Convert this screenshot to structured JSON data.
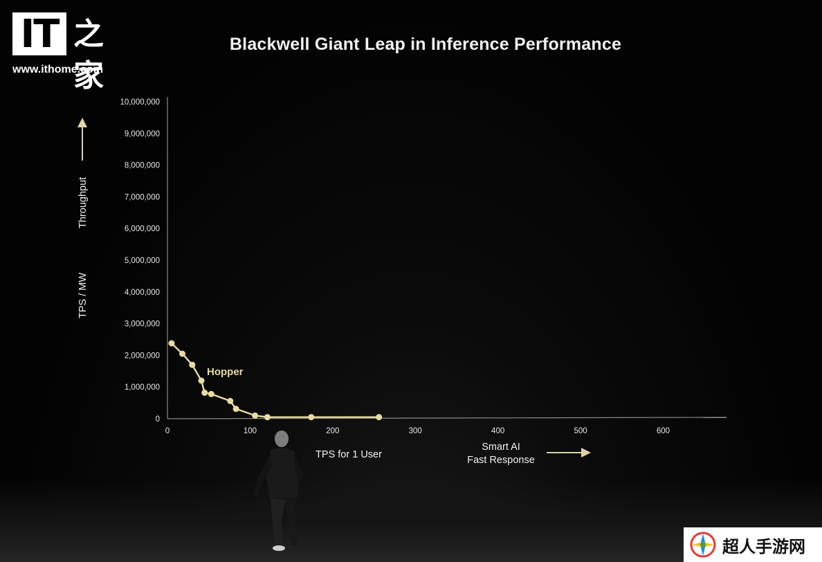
{
  "logo": {
    "mark": "IT",
    "chinese": "之家",
    "url": "www.ithome.com"
  },
  "watermark": {
    "text": "超人手游网",
    "icon": "compass-logo-icon"
  },
  "chart_data": {
    "type": "line",
    "title": "Blackwell Giant Leap in Inference Performance",
    "xlabel": "TPS for 1 User",
    "ylabel": "TPS / MW",
    "y_direction_label": "Throughput",
    "x_direction_label": [
      "Smart AI",
      "Fast Response"
    ],
    "xlim": [
      0,
      650
    ],
    "ylim": [
      0,
      10000000
    ],
    "x_ticks": [
      0,
      100,
      200,
      300,
      400,
      500,
      600
    ],
    "x_tick_labels": [
      "0",
      "100",
      "200",
      "300",
      "400",
      "500",
      "600"
    ],
    "y_ticks": [
      0,
      1000000,
      2000000,
      3000000,
      4000000,
      5000000,
      6000000,
      7000000,
      8000000,
      9000000,
      10000000
    ],
    "y_tick_labels": [
      "0",
      "1,000,000",
      "2,000,000",
      "3,000,000",
      "4,000,000",
      "5,000,000",
      "6,000,000",
      "7,000,000",
      "8,000,000",
      "9,000,000",
      "10,000,000"
    ],
    "grid": false,
    "series": [
      {
        "name": "Hopper",
        "color": "#e8dca0",
        "points": [
          [
            5,
            2380000
          ],
          [
            18,
            2050000
          ],
          [
            30,
            1700000
          ],
          [
            41,
            1200000
          ],
          [
            45,
            820000
          ],
          [
            53,
            780000
          ],
          [
            76,
            560000
          ],
          [
            83,
            310000
          ],
          [
            106,
            100000
          ],
          [
            121,
            50000
          ],
          [
            174,
            50000
          ],
          [
            256,
            50000
          ]
        ]
      }
    ],
    "axis_color": "#8a8a8a",
    "arrow_color": "#e0d3a8"
  }
}
